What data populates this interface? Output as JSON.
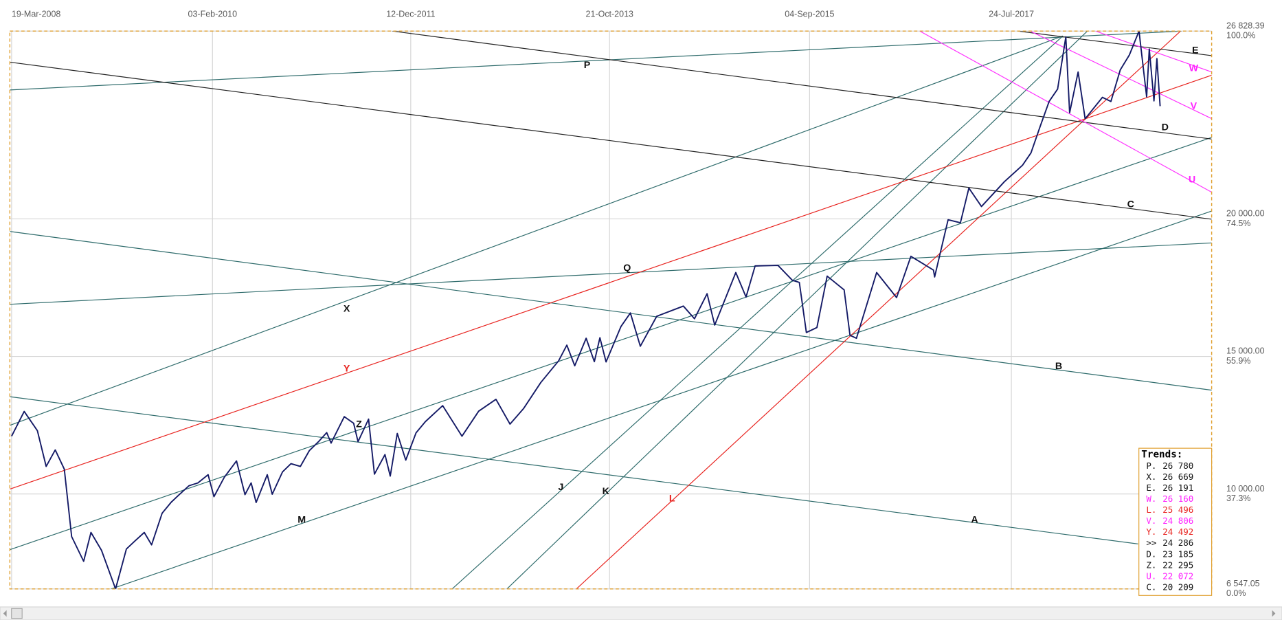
{
  "chart_data": {
    "type": "line",
    "color": "#141a66",
    "xlim": [
      "2008-03-13",
      "2019-06-08"
    ],
    "xticks": [
      {
        "value": "2008-03-19",
        "label": "19-Mar-2008"
      },
      {
        "value": "2010-02-03",
        "label": "03-Feb-2010"
      },
      {
        "value": "2011-12-12",
        "label": "12-Dec-2011"
      },
      {
        "value": "2013-10-21",
        "label": "21-Oct-2013"
      },
      {
        "value": "2015-09-04",
        "label": "04-Sep-2015"
      },
      {
        "value": "2017-07-24",
        "label": "24-Jul-2017"
      }
    ],
    "ylim": [
      6547.05,
      26828.39
    ],
    "yticks": [
      {
        "value": 26828.39,
        "label": "26 828.39"
      },
      {
        "value": 20000,
        "label": "20 000.00"
      },
      {
        "value": 15000,
        "label": "15 000.00"
      },
      {
        "value": 10000,
        "label": "10 000.00"
      },
      {
        "value": 6547.05,
        "label": "6 547.05"
      }
    ],
    "ytick_percent_labels": [
      "100.0%",
      "74.5%",
      "55.9%",
      "37.3%",
      "0.0%"
    ],
    "grid": true,
    "x": [
      "2008-03-19",
      "2008-05-01",
      "2008-06-15",
      "2008-07-15",
      "2008-08-15",
      "2008-09-15",
      "2008-10-10",
      "2008-11-20",
      "2008-12-15",
      "2009-01-20",
      "2009-03-09",
      "2009-04-15",
      "2009-05-15",
      "2009-06-15",
      "2009-07-10",
      "2009-08-15",
      "2009-09-15",
      "2009-10-15",
      "2009-11-15",
      "2009-12-15",
      "2010-01-19",
      "2010-02-08",
      "2010-03-15",
      "2010-04-26",
      "2010-05-25",
      "2010-06-15",
      "2010-07-02",
      "2010-08-09",
      "2010-08-26",
      "2010-09-30",
      "2010-10-29",
      "2010-11-30",
      "2010-12-31",
      "2011-01-31",
      "2011-02-28",
      "2011-03-15",
      "2011-04-29",
      "2011-05-31",
      "2011-06-15",
      "2011-07-21",
      "2011-08-10",
      "2011-09-15",
      "2011-10-03",
      "2011-10-27",
      "2011-11-25",
      "2011-12-30",
      "2012-01-31",
      "2012-03-30",
      "2012-06-04",
      "2012-07-31",
      "2012-09-28",
      "2012-11-15",
      "2012-12-31",
      "2013-02-28",
      "2013-04-30",
      "2013-05-28",
      "2013-06-24",
      "2013-08-02",
      "2013-08-30",
      "2013-09-18",
      "2013-10-09",
      "2013-11-29",
      "2013-12-31",
      "2014-02-03",
      "2014-03-31",
      "2014-06-30",
      "2014-08-07",
      "2014-09-19",
      "2014-10-15",
      "2014-12-26",
      "2015-01-30",
      "2015-03-02",
      "2015-05-19",
      "2015-07-07",
      "2015-07-31",
      "2015-08-24",
      "2015-09-29",
      "2015-11-03",
      "2015-12-31",
      "2016-01-20",
      "2016-02-11",
      "2016-04-20",
      "2016-06-27",
      "2016-08-15",
      "2016-10-31",
      "2016-11-04",
      "2016-12-20",
      "2017-01-31",
      "2017-03-01",
      "2017-04-13",
      "2017-06-30",
      "2017-08-31",
      "2017-09-29",
      "2017-10-31",
      "2017-11-30",
      "2017-12-29",
      "2018-01-26",
      "2018-02-08",
      "2018-03-09",
      "2018-04-02",
      "2018-05-31",
      "2018-06-29",
      "2018-07-31",
      "2018-08-31",
      "2018-10-03",
      "2018-10-29",
      "2018-11-07",
      "2018-11-23",
      "2018-12-03",
      "2018-12-14"
    ],
    "values": [
      12100,
      13000,
      12300,
      11000,
      11600,
      10900,
      8450,
      7550,
      8600,
      7950,
      6547.05,
      8000,
      8300,
      8600,
      8150,
      9300,
      9700,
      10000,
      10300,
      10400,
      10700,
      9900,
      10600,
      11200,
      9975,
      10400,
      9690,
      10700,
      9990,
      10800,
      11100,
      11000,
      11580,
      11900,
      12230,
      11850,
      12810,
      12570,
      11900,
      12720,
      10720,
      11430,
      10650,
      12200,
      11230,
      12220,
      12630,
      13210,
      12100,
      13010,
      13440,
      12540,
      13100,
      14050,
      14840,
      15410,
      14660,
      15660,
      14810,
      15680,
      14800,
      16090,
      16580,
      15370,
      16460,
      16830,
      16370,
      17280,
      16140,
      18050,
      17160,
      18290,
      18310,
      17770,
      17690,
      15870,
      16050,
      17920,
      17420,
      15770,
      15660,
      18050,
      17140,
      18640,
      18140,
      17890,
      19970,
      19860,
      21120,
      20450,
      21350,
      21950,
      22400,
      23380,
      24270,
      24720,
      26616,
      23860,
      25340,
      23640,
      24420,
      24270,
      25420,
      25960,
      26828.39,
      24440,
      26180,
      24290,
      25830,
      24100
    ],
    "trend_lines": [
      {
        "label": "P",
        "line_color": "#2e6b6b",
        "label_color": "#111111"
      },
      {
        "label": "X",
        "line_color": "#2e6b6b",
        "label_color": "#111111"
      },
      {
        "label": "Q",
        "line_color": "#2e6b6b",
        "label_color": "#111111"
      },
      {
        "label": "B",
        "line_color": "#2e6b6b",
        "label_color": "#111111"
      },
      {
        "label": "A",
        "line_color": "#2e6b6b",
        "label_color": "#111111"
      },
      {
        "label": "M",
        "line_color": "#2e6b6b",
        "label_color": "#111111"
      },
      {
        "label": "J",
        "line_color": "#2e6b6b",
        "label_color": "#111111"
      },
      {
        "label": "K",
        "line_color": "#2e6b6b",
        "label_color": "#111111"
      },
      {
        "label": "L",
        "line_color": "#e8231f",
        "label_color": "#e8231f"
      },
      {
        "label": "Y",
        "line_color": "#e8231f",
        "label_color": "#e8231f"
      },
      {
        "label": "D",
        "line_color": "#222222",
        "label_color": "#111111"
      },
      {
        "label": "C",
        "line_color": "#222222",
        "label_color": "#111111"
      },
      {
        "label": "E",
        "line_color": "#222222",
        "label_color": "#111111"
      },
      {
        "label": "W",
        "line_color": "#ff33ff",
        "label_color": "#ff22ff"
      },
      {
        "label": "V",
        "line_color": "#ff33ff",
        "label_color": "#ff22ff"
      },
      {
        "label": "U",
        "line_color": "#ff33ff",
        "label_color": "#ff22ff"
      },
      {
        "label": "Z",
        "line_color": "#2e6b6b",
        "label_color": "#111111"
      }
    ],
    "trends_table": {
      "title": "Trends:",
      "rows": [
        {
          "label": "P.",
          "value": "26 780",
          "color": "#111111"
        },
        {
          "label": "X.",
          "value": "26 669",
          "color": "#111111"
        },
        {
          "label": "E.",
          "value": "26 191",
          "color": "#111111"
        },
        {
          "label": "W.",
          "value": "26 160",
          "color": "#ff22ff"
        },
        {
          "label": "L.",
          "value": "25 496",
          "color": "#e8231f"
        },
        {
          "label": "V.",
          "value": "24 806",
          "color": "#ff22ff"
        },
        {
          "label": "Y.",
          "value": "24 492",
          "color": "#e8231f"
        },
        {
          "label": ">>",
          "value": "24 286",
          "color": "#111111"
        },
        {
          "label": "D.",
          "value": "23 185",
          "color": "#111111"
        },
        {
          "label": "Z.",
          "value": "22 295",
          "color": "#111111"
        },
        {
          "label": "U.",
          "value": "22 072",
          "color": "#ff22ff"
        },
        {
          "label": "C.",
          "value": "20 209",
          "color": "#111111"
        }
      ]
    }
  }
}
